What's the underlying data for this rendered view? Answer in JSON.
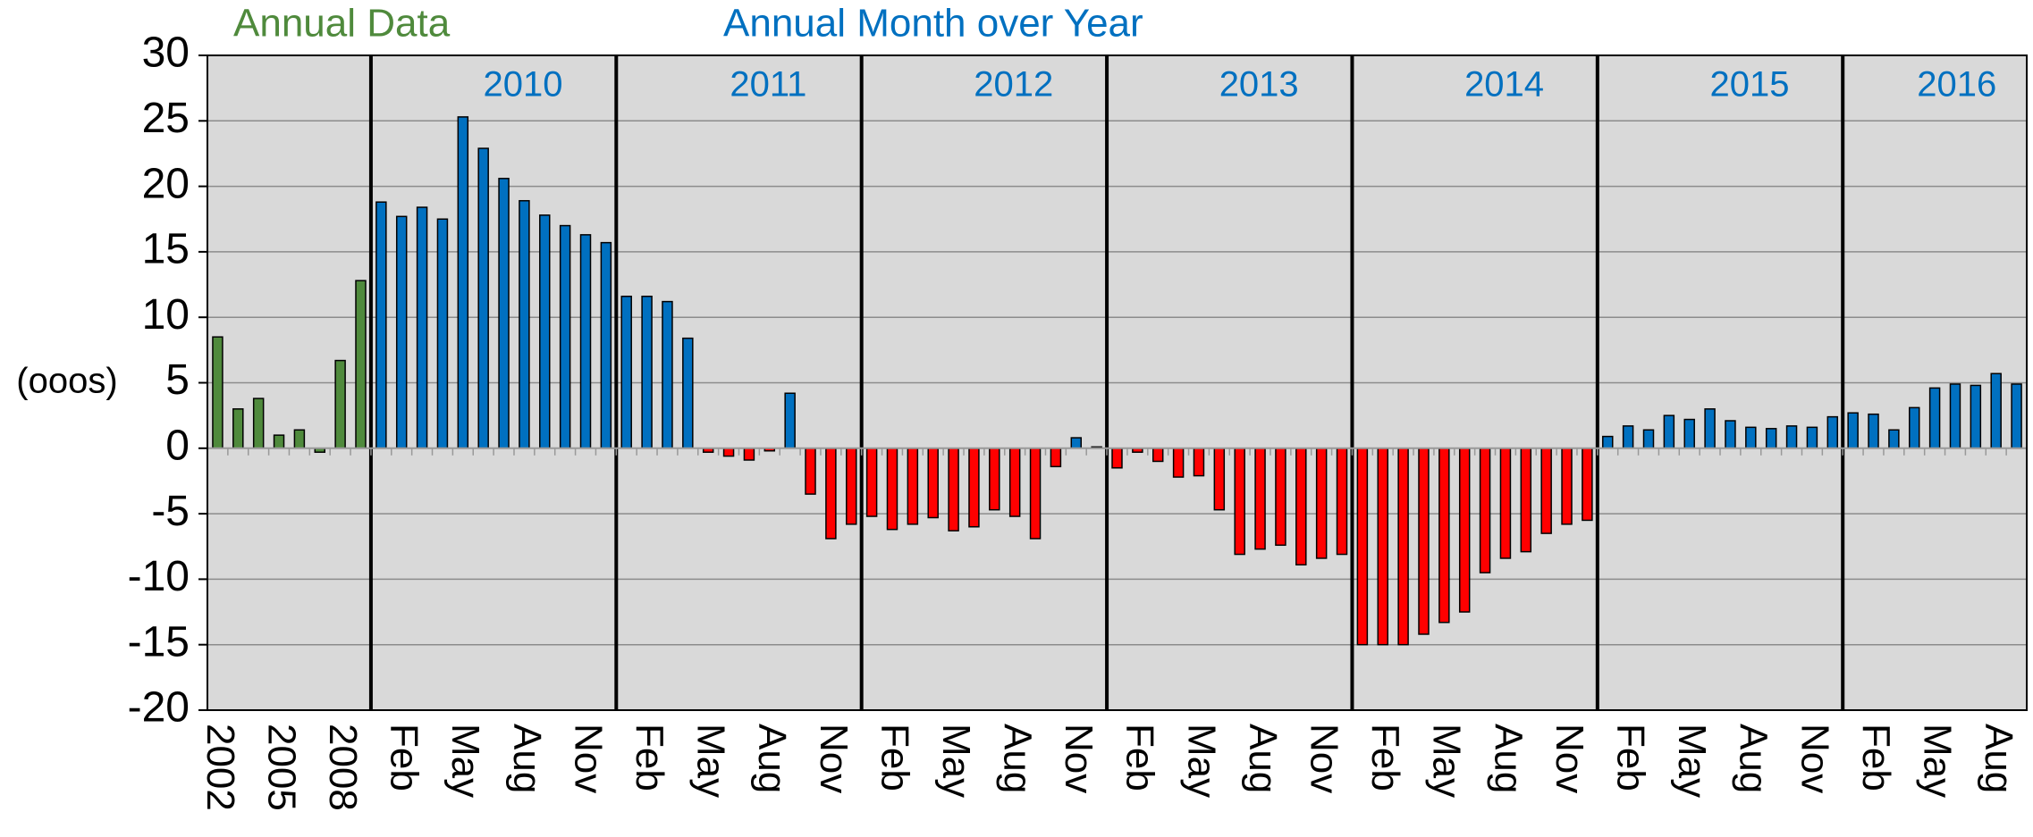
{
  "chart_data": {
    "type": "bar",
    "y_label": "(ooos)",
    "categories": [
      "2002",
      null,
      null,
      "2005",
      null,
      null,
      "2008",
      null,
      null,
      "Feb",
      null,
      null,
      "May",
      null,
      null,
      "Aug",
      null,
      null,
      "Nov",
      null,
      null,
      "Feb",
      null,
      null,
      "May",
      null,
      null,
      "Aug",
      null,
      null,
      "Nov",
      null,
      null,
      "Feb",
      null,
      null,
      "May",
      null,
      null,
      "Aug",
      null,
      null,
      "Nov",
      null,
      null,
      "Feb",
      null,
      null,
      "May",
      null,
      null,
      "Aug",
      null,
      null,
      "Nov",
      null,
      null,
      "Feb",
      null,
      null,
      "May",
      null,
      null,
      "Aug",
      null,
      null,
      "Nov",
      null,
      null,
      "Feb",
      null,
      null,
      "May",
      null,
      null,
      "Aug",
      null,
      null,
      "Nov",
      null,
      null,
      "Feb",
      null,
      null,
      "May",
      null,
      null,
      "Aug",
      null
    ],
    "year_groups": [
      "2010",
      "2011",
      "2012",
      "2013",
      "2014",
      "2015",
      "2016"
    ],
    "series": [
      {
        "name": "Annual Data",
        "color": "#4f8a3c",
        "values": [
          8.5,
          3,
          3.8,
          1,
          1.4,
          -0.3,
          6.7,
          12.8,
          null,
          null,
          null,
          null,
          null,
          null,
          null,
          null,
          null,
          null,
          null,
          null,
          null,
          null,
          null,
          null,
          null,
          null,
          null,
          null,
          null,
          null,
          null,
          null,
          null,
          null,
          null,
          null,
          null,
          null,
          null,
          null,
          null,
          null,
          null,
          null,
          null,
          null,
          null,
          null,
          null,
          null,
          null,
          null,
          null,
          null,
          null,
          null,
          null,
          null,
          null,
          null,
          null,
          null,
          null,
          null,
          null,
          null,
          null,
          null,
          null,
          null,
          null,
          null,
          null,
          null,
          null,
          null,
          null,
          null,
          null,
          null,
          null,
          null,
          null,
          null,
          null,
          null,
          null,
          null,
          null
        ]
      },
      {
        "name": "Annual Month over Year",
        "color": "#0070c0",
        "negative_color": "#ff0000",
        "values": [
          null,
          null,
          null,
          null,
          null,
          null,
          null,
          null,
          18.8,
          17.7,
          18.4,
          17.5,
          25.3,
          22.9,
          20.6,
          18.9,
          17.8,
          17.0,
          16.3,
          15.7,
          11.6,
          11.6,
          11.2,
          8.4,
          -0.3,
          -0.6,
          -0.9,
          -0.2,
          4.2,
          -3.5,
          -6.9,
          -5.8,
          -5.2,
          -6.2,
          -5.8,
          -5.3,
          -6.3,
          -6.0,
          -4.7,
          -5.2,
          -6.9,
          -1.4,
          0.8,
          0.1,
          -1.5,
          -0.3,
          -1.0,
          -2.2,
          -2.1,
          -4.7,
          -8.1,
          -7.7,
          -7.4,
          -8.9,
          -8.4,
          -8.1,
          -15.0,
          -15.0,
          -15.0,
          -14.2,
          -13.3,
          -12.5,
          -9.5,
          -8.4,
          -7.9,
          -6.5,
          -5.8,
          -5.5,
          0.9,
          1.7,
          1.4,
          2.5,
          2.2,
          3.0,
          2.1,
          1.6,
          1.5,
          1.7,
          1.6,
          2.4,
          2.7,
          2.6,
          1.4,
          3.1,
          4.6,
          4.9,
          4.8,
          5.7,
          4.9
        ]
      }
    ],
    "ylim": [
      -20,
      30
    ],
    "yticks": [
      -20,
      -15,
      -10,
      -5,
      0,
      5,
      10,
      15,
      20,
      25,
      30
    ],
    "grid": true,
    "plot_background": "#d9d9d9"
  }
}
